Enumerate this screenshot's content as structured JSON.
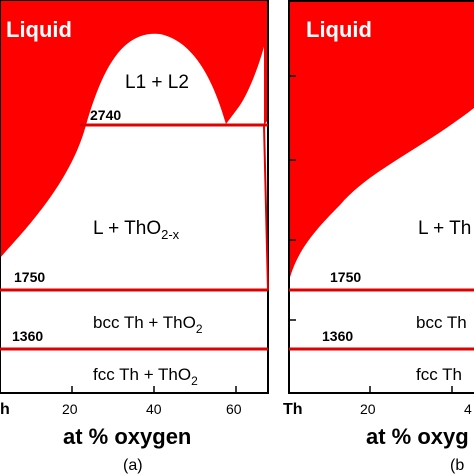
{
  "panel_a": {
    "liquid": "Liquid",
    "l1_l2": "L1 + L2",
    "t_2740": "2740",
    "l_tho2x_main": "L + ThO",
    "l_tho2x_sub": "2-x",
    "t_1750": "1750",
    "bcc_main": "bcc Th + ThO",
    "bcc_sub": "2",
    "t_1360": "1360",
    "fcc_main": "fcc Th + ThO",
    "fcc_sub": "2",
    "tick_left": "h",
    "tick_20": "20",
    "tick_40": "40",
    "tick_60": "60",
    "xlabel": "at % oxygen",
    "caption": "(a)"
  },
  "panel_b": {
    "liquid": "Liquid",
    "l_tho2x": "L + Th",
    "t_1750": "1750",
    "bcc": "bcc Th",
    "t_1360": "1360",
    "fcc": "fcc Th",
    "tick_th": "Th",
    "tick_20": "20",
    "tick_40": "4",
    "xlabel": "at % oxyg",
    "caption": "(b"
  },
  "colors": {
    "liquid_fill": "#ff0000",
    "phase_line": "#e00000",
    "frame": "#000000"
  }
}
